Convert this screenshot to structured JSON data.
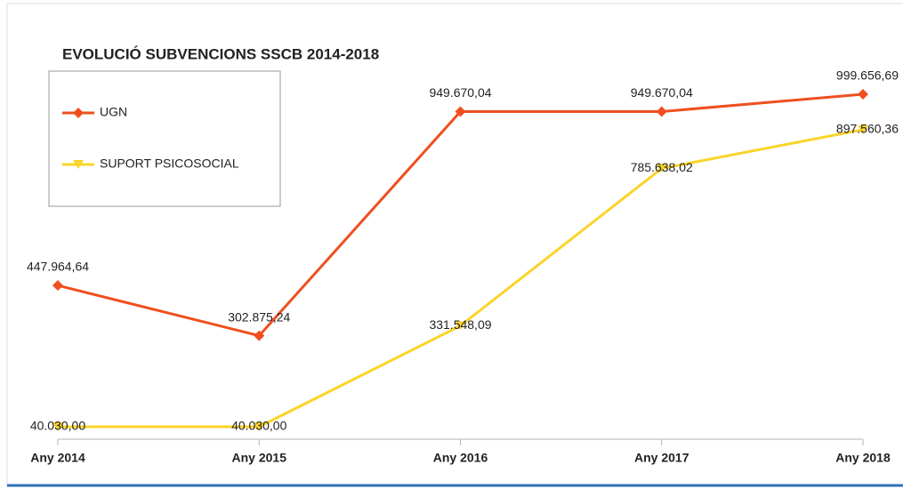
{
  "chart_data": {
    "type": "line",
    "title": "EVOLUCIÓ SUBVENCIONS SSCB 2014-2018",
    "categories": [
      "Any 2014",
      "Any 2015",
      "Any 2016",
      "Any 2017",
      "Any 2018"
    ],
    "series": [
      {
        "name": "UGN",
        "color": "#ef4f1f",
        "marker": "diamond",
        "values": [
          447964.64,
          302875.24,
          949670.04,
          949670.04,
          999656.69
        ],
        "value_labels": [
          "447.964,64",
          "302.875,24",
          "949.670,04",
          "949.670,04",
          "999.656,69"
        ]
      },
      {
        "name": "SUPORT PSICOSOCIAL",
        "color": "#fad42a",
        "marker": "triangle-down",
        "values": [
          40030.0,
          40030.0,
          331548.09,
          785638.02,
          897560.36
        ],
        "value_labels": [
          "40.030,00",
          "40.030,00",
          "331.548,09",
          "785.638,02",
          "897.560,36"
        ]
      }
    ],
    "ylim": [
      0,
      1000000
    ],
    "legend": "top-left"
  }
}
